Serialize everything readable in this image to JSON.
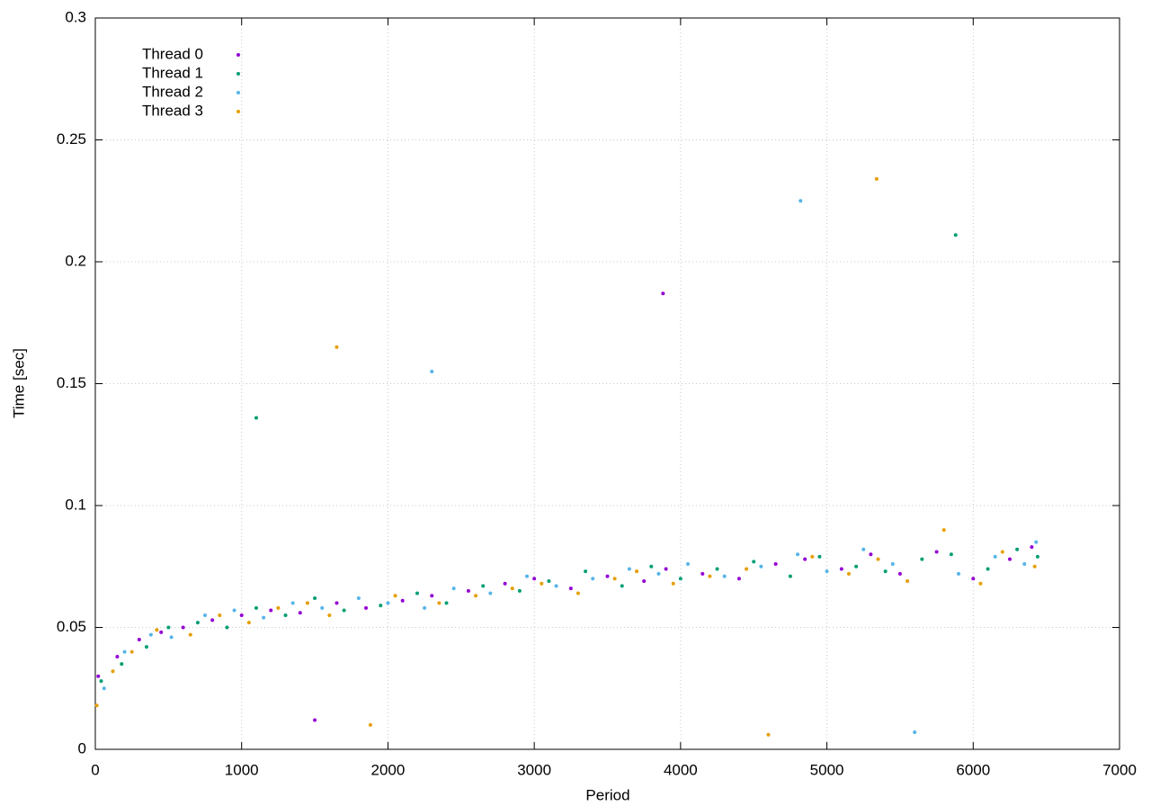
{
  "chart_data": {
    "type": "scatter",
    "xlabel": "Period",
    "ylabel": "Time [sec]",
    "xlim": [
      0,
      7000
    ],
    "ylim": [
      0,
      0.3
    ],
    "xticks": [
      0,
      1000,
      2000,
      3000,
      4000,
      5000,
      6000,
      7000
    ],
    "yticks": [
      0,
      0.05,
      0.1,
      0.15,
      0.2,
      0.25,
      0.3
    ],
    "grid": true,
    "legend": "top-left",
    "series": [
      {
        "name": "Thread 0",
        "color": "#9400d3",
        "x": [
          20,
          150,
          300,
          450,
          600,
          800,
          1000,
          1200,
          1400,
          1650,
          1850,
          2100,
          2300,
          2550,
          2800,
          3000,
          3250,
          3500,
          3750,
          3900,
          4150,
          4400,
          4650,
          4850,
          5100,
          5300,
          5500,
          5750,
          6000,
          6250,
          6400,
          3880,
          1500
        ],
        "y": [
          0.03,
          0.038,
          0.045,
          0.048,
          0.05,
          0.053,
          0.055,
          0.057,
          0.056,
          0.06,
          0.058,
          0.061,
          0.063,
          0.065,
          0.068,
          0.07,
          0.066,
          0.071,
          0.069,
          0.074,
          0.072,
          0.07,
          0.076,
          0.078,
          0.074,
          0.08,
          0.072,
          0.081,
          0.07,
          0.078,
          0.083,
          0.187,
          0.012
        ]
      },
      {
        "name": "Thread 1",
        "color": "#009e73",
        "x": [
          40,
          180,
          350,
          500,
          700,
          900,
          1100,
          1300,
          1500,
          1700,
          1950,
          2200,
          2400,
          2650,
          2900,
          3100,
          3350,
          3600,
          3800,
          4000,
          4250,
          4500,
          4750,
          4950,
          5200,
          5400,
          5650,
          5850,
          6100,
          6300,
          6440,
          1100,
          5880
        ],
        "y": [
          0.028,
          0.035,
          0.042,
          0.05,
          0.052,
          0.05,
          0.058,
          0.055,
          0.062,
          0.057,
          0.059,
          0.064,
          0.06,
          0.067,
          0.065,
          0.069,
          0.073,
          0.067,
          0.075,
          0.07,
          0.074,
          0.077,
          0.071,
          0.079,
          0.075,
          0.073,
          0.078,
          0.08,
          0.074,
          0.082,
          0.079,
          0.136,
          0.211
        ]
      },
      {
        "name": "Thread 2",
        "color": "#56b4e9",
        "x": [
          60,
          200,
          380,
          520,
          750,
          950,
          1150,
          1350,
          1550,
          1800,
          2000,
          2250,
          2450,
          2700,
          2950,
          3150,
          3400,
          3650,
          3850,
          4050,
          4300,
          4550,
          4800,
          5000,
          5250,
          5450,
          5600,
          5900,
          6150,
          6350,
          6430,
          4820,
          2300
        ],
        "y": [
          0.025,
          0.04,
          0.047,
          0.046,
          0.055,
          0.057,
          0.054,
          0.06,
          0.058,
          0.062,
          0.06,
          0.058,
          0.066,
          0.064,
          0.071,
          0.067,
          0.07,
          0.074,
          0.072,
          0.076,
          0.071,
          0.075,
          0.08,
          0.073,
          0.082,
          0.076,
          0.007,
          0.072,
          0.079,
          0.076,
          0.085,
          0.225,
          0.155
        ]
      },
      {
        "name": "Thread 3",
        "color": "#e69f00",
        "x": [
          10,
          120,
          250,
          420,
          650,
          850,
          1050,
          1250,
          1450,
          1600,
          1880,
          2050,
          2350,
          2600,
          2850,
          3050,
          3300,
          3550,
          3700,
          3950,
          4200,
          4450,
          4600,
          4900,
          5150,
          5350,
          5550,
          5800,
          6050,
          6200,
          6420,
          1650,
          5340
        ],
        "y": [
          0.018,
          0.032,
          0.04,
          0.049,
          0.047,
          0.055,
          0.052,
          0.058,
          0.06,
          0.055,
          0.01,
          0.063,
          0.06,
          0.063,
          0.066,
          0.068,
          0.064,
          0.07,
          0.073,
          0.068,
          0.071,
          0.074,
          0.006,
          0.079,
          0.072,
          0.078,
          0.069,
          0.09,
          0.068,
          0.081,
          0.075,
          0.165,
          0.234
        ]
      }
    ]
  }
}
